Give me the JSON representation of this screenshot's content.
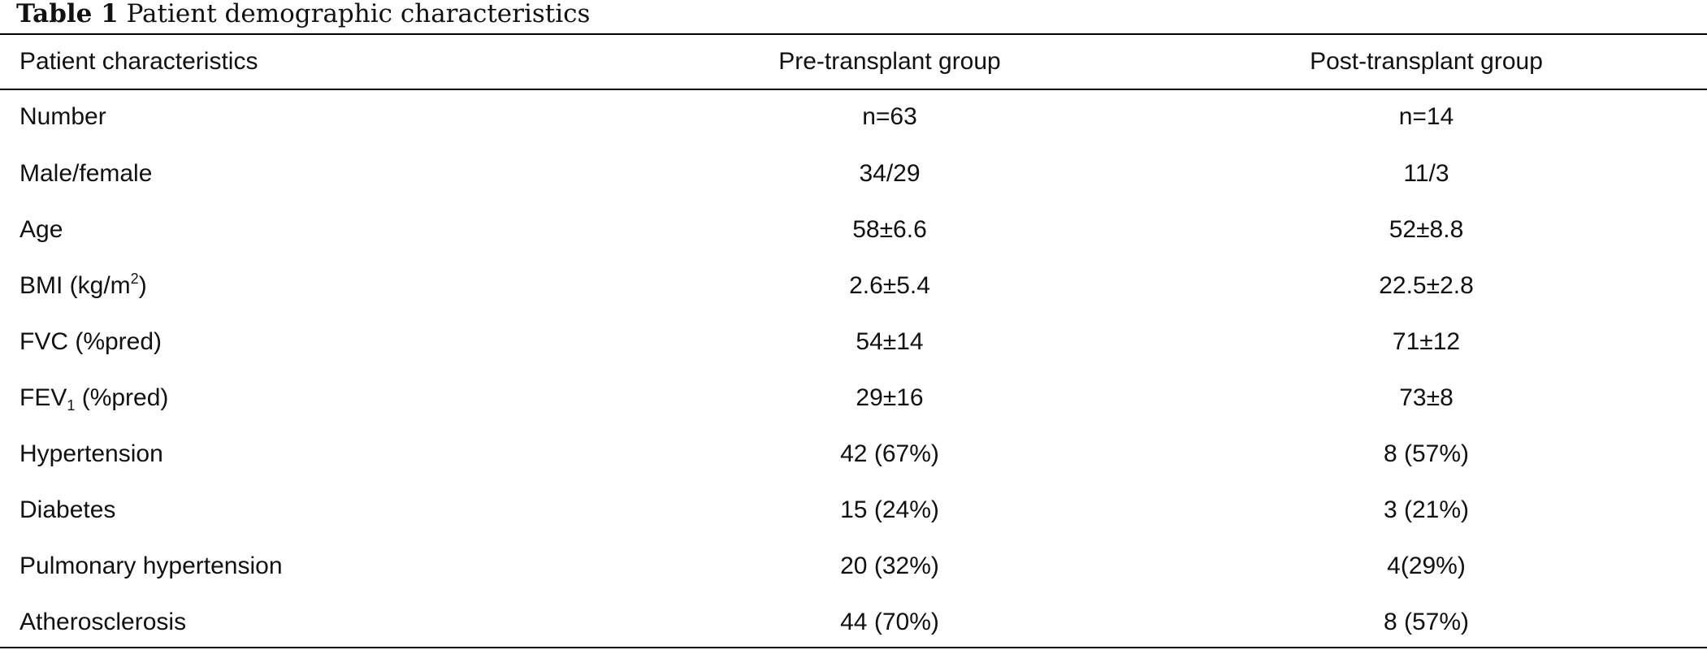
{
  "caption": {
    "label": "Table 1",
    "title": "Patient demographic characteristics"
  },
  "table": {
    "headers": [
      "Patient characteristics",
      "Pre-transplant group",
      "Post-transplant group"
    ],
    "rows": [
      {
        "characteristic": "Number",
        "pre": "n=63",
        "post": "n=14"
      },
      {
        "characteristic": "Male/female",
        "pre": "34/29",
        "post": "11/3"
      },
      {
        "characteristic": "Age",
        "pre": "58±6.6",
        "post": "52±8.8"
      },
      {
        "characteristic_main": "BMI (kg/m",
        "characteristic_sup": "2",
        "characteristic_tail": ")",
        "pre": "2.6±5.4",
        "post": "22.5±2.8"
      },
      {
        "characteristic": "FVC (%pred)",
        "pre": "54±14",
        "post": "71±12"
      },
      {
        "characteristic_main": "FEV",
        "characteristic_sub": "1",
        "characteristic_tail": " (%pred)",
        "pre": "29±16",
        "post": "73±8"
      },
      {
        "characteristic": "Hypertension",
        "pre": "42 (67%)",
        "post": "8 (57%)"
      },
      {
        "characteristic": "Diabetes",
        "pre": "15 (24%)",
        "post": "3 (21%)"
      },
      {
        "characteristic": "Pulmonary hypertension",
        "pre": "20 (32%)",
        "post": "4(29%)"
      },
      {
        "characteristic": "Atherosclerosis",
        "pre": "44 (70%)",
        "post": "8 (57%)"
      }
    ]
  }
}
